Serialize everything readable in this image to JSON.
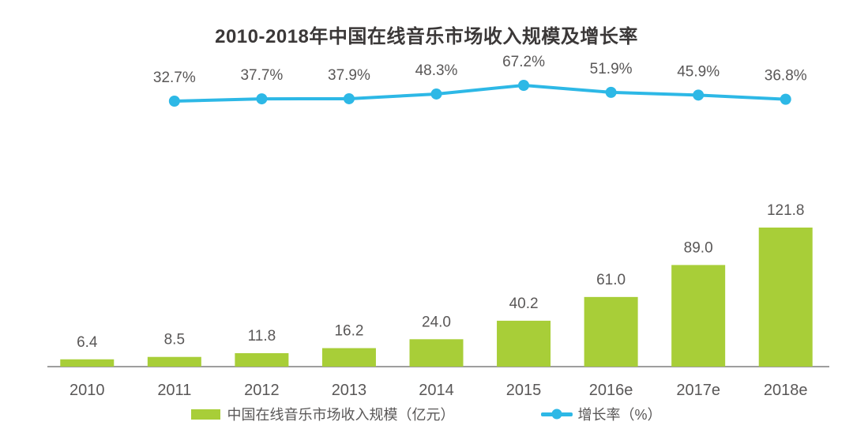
{
  "page": {
    "background": "#ffffff"
  },
  "chart_data": {
    "type": "bar+line combo",
    "title": "2010-2018年中国在线音乐市场收入规模及增长率",
    "categories": [
      "2010",
      "2011",
      "2012",
      "2013",
      "2014",
      "2015",
      "2016e",
      "2017e",
      "2018e"
    ],
    "series": [
      {
        "name": "中国在线音乐市场收入规模（亿元）",
        "type": "bar",
        "color": "#a8ce38",
        "values": [
          6.4,
          8.5,
          11.8,
          16.2,
          24.0,
          40.2,
          61.0,
          89.0,
          121.8
        ],
        "label_format": "{v}",
        "start_index": 0
      },
      {
        "name": "增长率（%）",
        "type": "line",
        "color": "#2db8e6",
        "values": [
          32.7,
          37.7,
          37.9,
          48.3,
          67.2,
          51.9,
          45.9,
          36.8
        ],
        "label_format": "{v}%",
        "start_index": 1
      }
    ],
    "xlabel": "",
    "ylabel": "",
    "ylim_bar": [
      0,
      135
    ],
    "grid": false,
    "y_axis_visible": false,
    "x_axis_visible": true,
    "data_labels": true,
    "legend_position": "bottom"
  },
  "colors": {
    "bar": "#a8ce38",
    "line": "#2db8e6",
    "label_text": "#595757",
    "title_text": "#3b3838",
    "axis_line": "#9e9e9e"
  }
}
